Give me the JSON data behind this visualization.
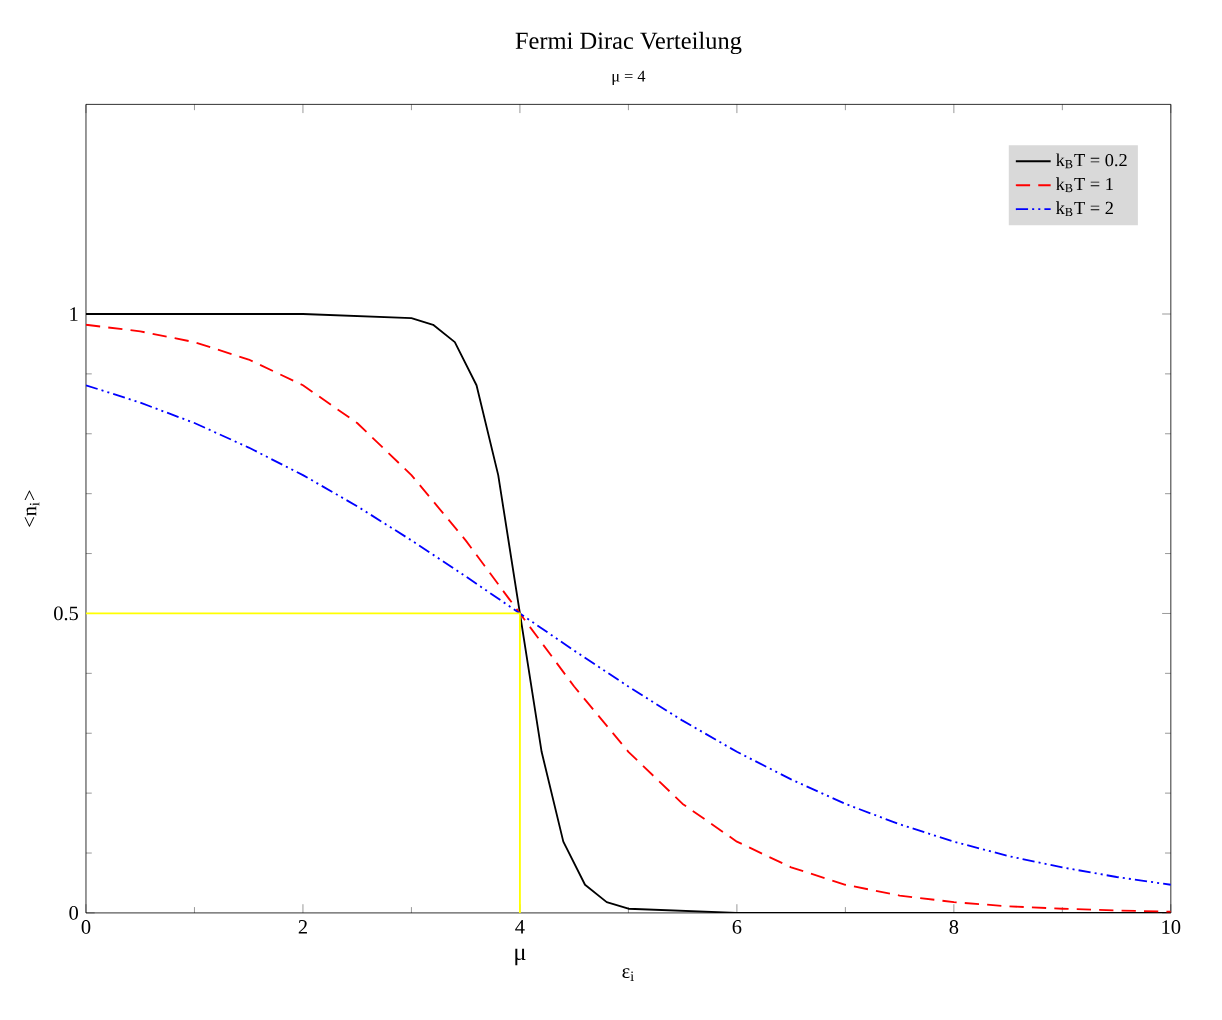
{
  "chart_data": {
    "type": "line",
    "title": "Fermi Dirac Verteilung",
    "subtitle": "μ = 4",
    "xlabel": "ε$_{i}$",
    "ylabel": "<n$_{i}$>",
    "xlim": [
      0,
      10
    ],
    "ylim": [
      0,
      1.35
    ],
    "xticks": [
      0,
      2,
      4,
      6,
      8,
      10
    ],
    "yticks": [
      0,
      0.5,
      1
    ],
    "legend": "top right",
    "grid": false,
    "marker": "none",
    "annotations": [
      {
        "text": "μ",
        "x": 4,
        "y": 0
      }
    ],
    "series": [
      {
        "name": "k$_{B}$T = 0.2",
        "color": "#000000",
        "line_style": "solid",
        "x": [
          0,
          1,
          2,
          3,
          3.2,
          3.4,
          3.6,
          3.8,
          4,
          4.2,
          4.4,
          4.6,
          4.8,
          5,
          6,
          8,
          10
        ],
        "values": [
          1,
          1,
          1,
          0.993,
          0.982,
          0.953,
          0.881,
          0.731,
          0.5,
          0.269,
          0.119,
          0.047,
          0.018,
          0.007,
          0,
          0,
          0
        ]
      },
      {
        "name": "k$_{B}$T = 1",
        "color": "#ff0000",
        "line_style": "dashed",
        "x": [
          0,
          0.5,
          1,
          1.5,
          2,
          2.5,
          3,
          3.5,
          4,
          4.5,
          5,
          5.5,
          6,
          6.5,
          7,
          7.5,
          8,
          8.5,
          9,
          9.5,
          10
        ],
        "values": [
          0.982,
          0.971,
          0.953,
          0.924,
          0.881,
          0.818,
          0.731,
          0.622,
          0.5,
          0.378,
          0.269,
          0.182,
          0.119,
          0.076,
          0.047,
          0.029,
          0.018,
          0.011,
          0.007,
          0.004,
          0.002
        ]
      },
      {
        "name": "k$_{B}$T = 2",
        "color": "#0000ff",
        "line_style": "dashdotdotted",
        "x": [
          0,
          0.5,
          1,
          1.5,
          2,
          2.5,
          3,
          3.5,
          4,
          4.5,
          5,
          5.5,
          6,
          6.5,
          7,
          7.5,
          8,
          8.5,
          9,
          9.5,
          10
        ],
        "values": [
          0.881,
          0.852,
          0.818,
          0.777,
          0.731,
          0.679,
          0.622,
          0.562,
          0.5,
          0.438,
          0.378,
          0.321,
          0.269,
          0.223,
          0.182,
          0.148,
          0.119,
          0.095,
          0.076,
          0.06,
          0.047
        ]
      },
      {
        "type": "line",
        "color": "#ffff00",
        "line_style": "solid",
        "x": [
          0,
          4,
          4
        ],
        "values": [
          0.5,
          0.5,
          0
        ]
      }
    ]
  }
}
